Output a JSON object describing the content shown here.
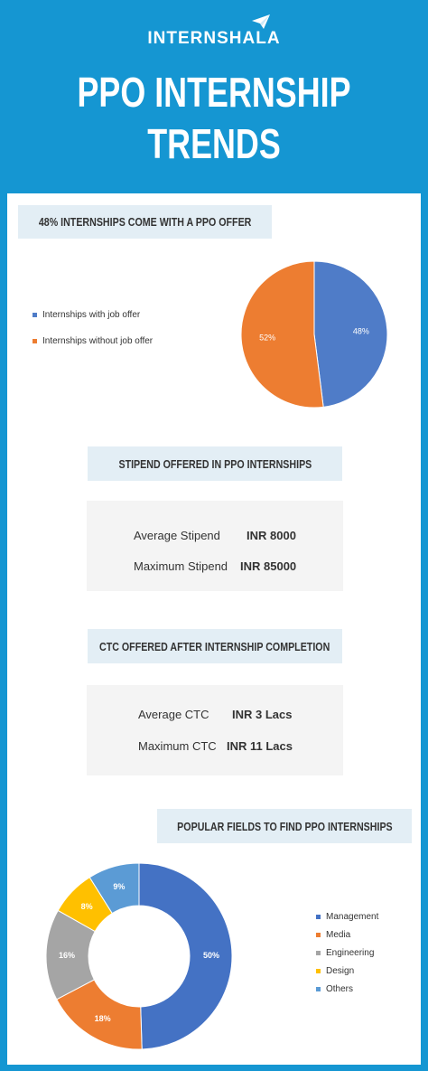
{
  "header": {
    "brand": "INTERNSHALA",
    "title_line1": "PPO INTERNSHIP",
    "title_line2": "TRENDS",
    "brand_icon": "paper-plane-icon"
  },
  "sections": {
    "ppo_offer": {
      "heading": "48% INTERNSHIPS COME WITH A PPO OFFER"
    },
    "stipend": {
      "heading": "STIPEND OFFERED IN PPO INTERNSHIPS",
      "rows": [
        {
          "label": "Average Stipend",
          "value": "INR 8000"
        },
        {
          "label": "Maximum Stipend",
          "value": "INR 85000"
        }
      ]
    },
    "ctc": {
      "heading": "CTC OFFERED AFTER INTERNSHIP COMPLETION",
      "rows": [
        {
          "label": "Average CTC",
          "value": "INR 3 Lacs"
        },
        {
          "label": "Maximum CTC",
          "value": "INR 11 Lacs"
        }
      ]
    },
    "fields": {
      "heading": "POPULAR FIELDS TO FIND PPO INTERNSHIPS"
    }
  },
  "colors": {
    "background": "#1596d2",
    "blue": "#4f7cc8",
    "orange": "#ed7d31",
    "gray": "#a5a5a5",
    "yellow": "#ffc000",
    "light_blue": "#5b9bd5"
  },
  "chart_data": [
    {
      "type": "pie",
      "title": "48% INTERNSHIPS COME WITH A PPO OFFER",
      "legend_position": "left",
      "categories": [
        "Internships with job offer",
        "Internships without job offer"
      ],
      "values": [
        48,
        52
      ],
      "labels": [
        "48%",
        "52%"
      ],
      "colors": [
        "#4f7cc8",
        "#ed7d31"
      ]
    },
    {
      "type": "pie",
      "subtype": "donut",
      "title": "POPULAR FIELDS TO FIND PPO INTERNSHIPS",
      "legend_position": "right",
      "categories": [
        "Management",
        "Media",
        "Engineering",
        "Design",
        "Others"
      ],
      "values": [
        50,
        18,
        16,
        8,
        9
      ],
      "labels": [
        "50%",
        "18%",
        "16%",
        "8%",
        "9%"
      ],
      "colors": [
        "#4472c4",
        "#ed7d31",
        "#a5a5a5",
        "#ffc000",
        "#5b9bd5"
      ]
    }
  ]
}
